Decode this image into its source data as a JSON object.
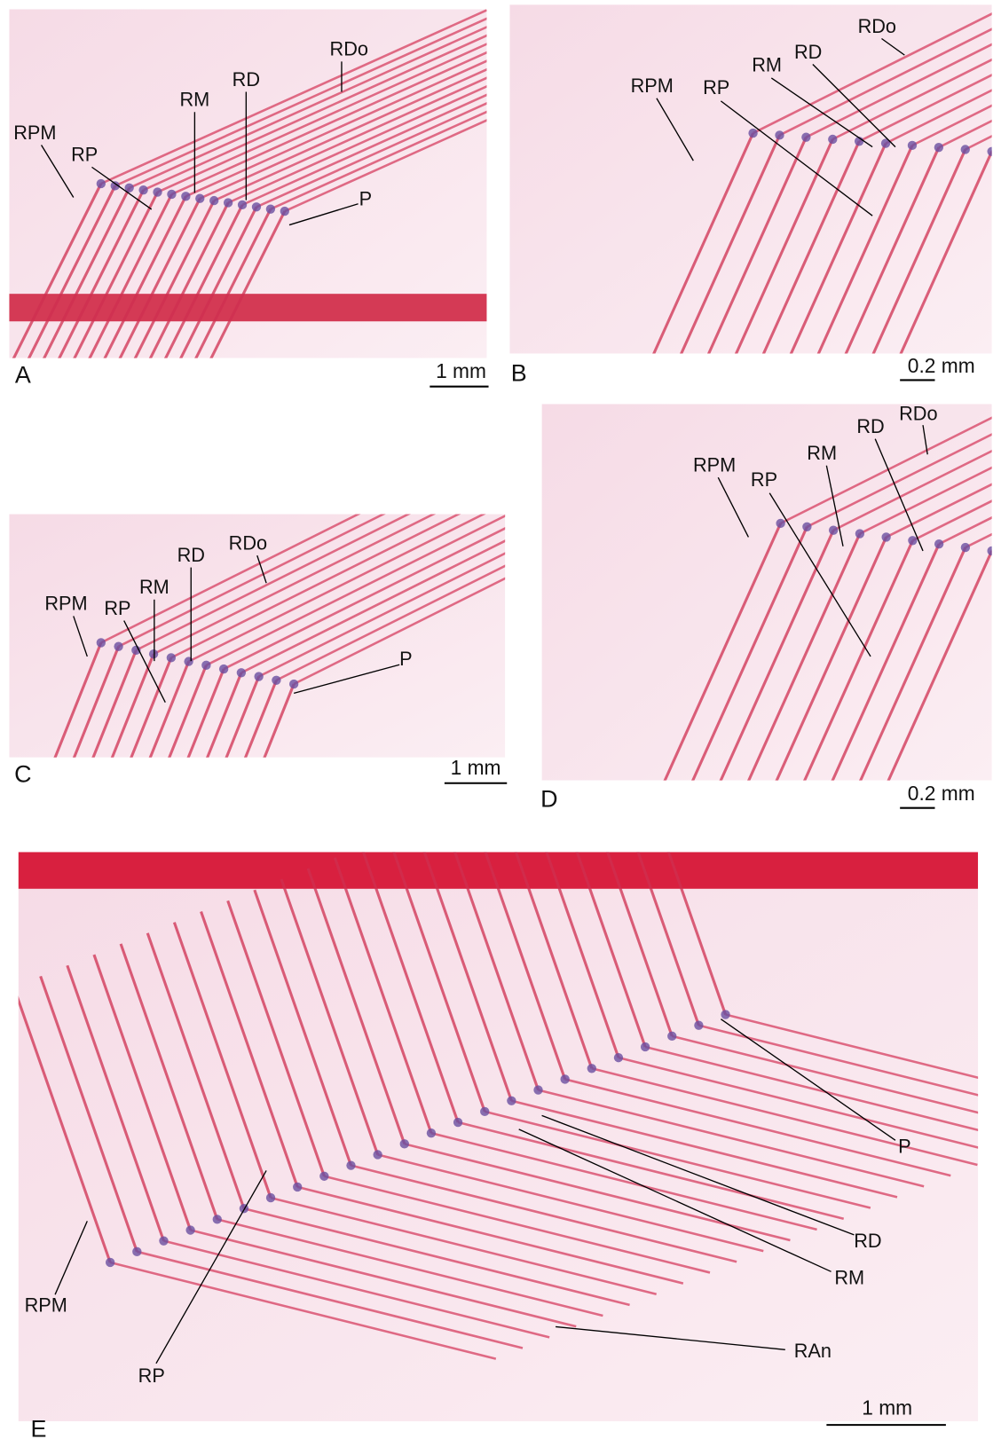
{
  "panels": [
    {
      "letter": "A",
      "scale": "1 mm",
      "labels": [
        "RDo",
        "RD",
        "RM",
        "RPM",
        "RP",
        "P"
      ]
    },
    {
      "letter": "B",
      "scale": "0.2 mm",
      "labels": [
        "RDo",
        "RD",
        "RM",
        "RPM",
        "RP"
      ]
    },
    {
      "letter": "C",
      "scale": "1 mm",
      "labels": [
        "RDo",
        "RD",
        "RM",
        "RPM",
        "RP",
        "P"
      ]
    },
    {
      "letter": "D",
      "scale": "0.2 mm",
      "labels": [
        "RDo",
        "RD",
        "RM",
        "RPM",
        "RP"
      ]
    },
    {
      "letter": "E",
      "scale": "1 mm",
      "labels": [
        "P",
        "RD",
        "RM",
        "RAn",
        "RPM",
        "RP"
      ]
    }
  ]
}
